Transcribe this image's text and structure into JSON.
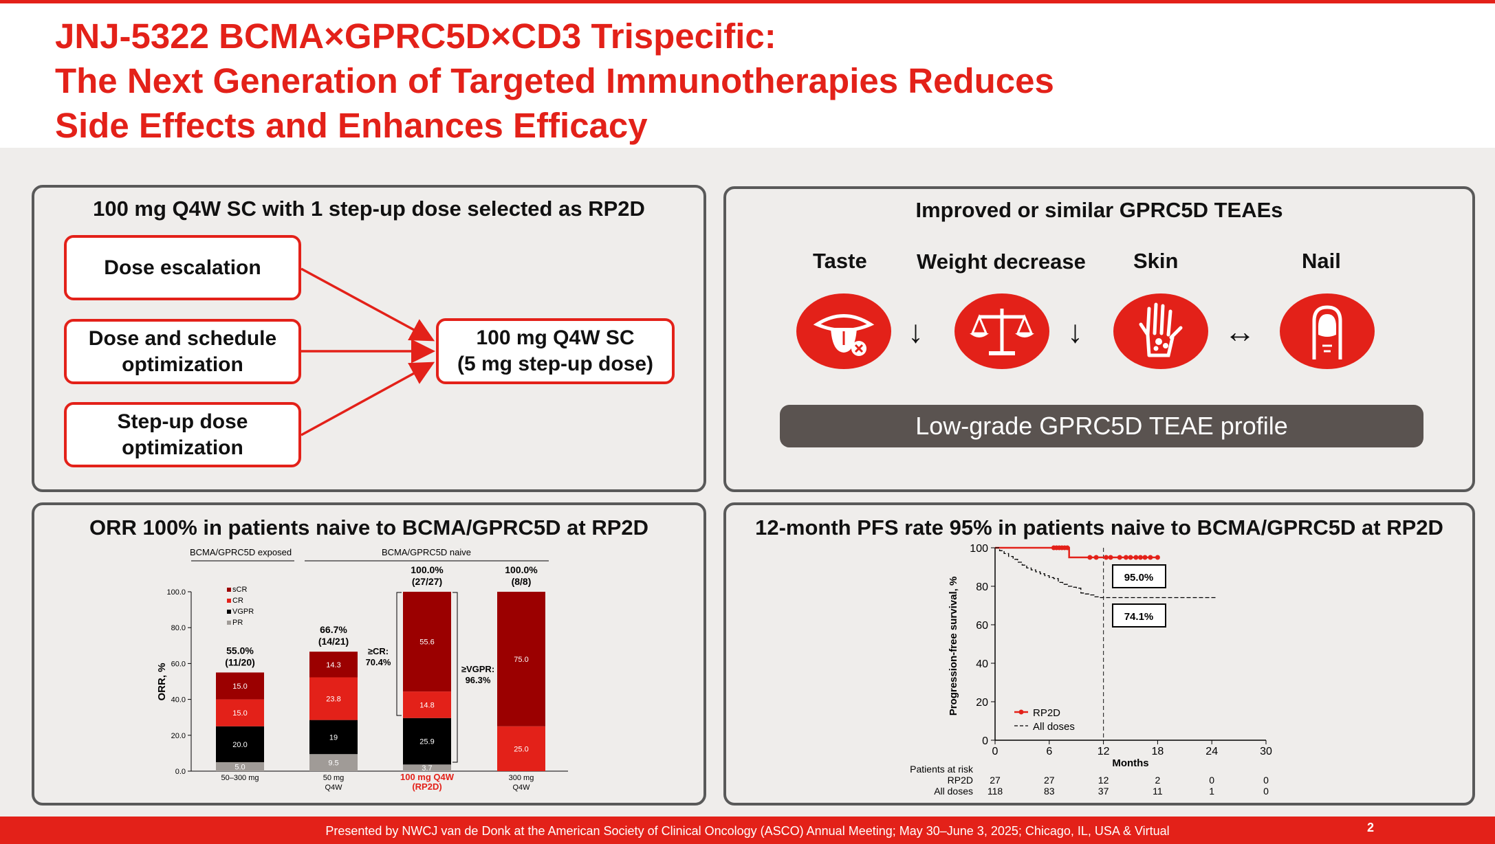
{
  "title": {
    "line1": "JNJ-5322 BCMA×GPRC5D×CD3 Trispecific:",
    "line2": "The Next Generation of Targeted Immunotherapies Reduces",
    "line3": "Side Effects and Enhances Efficacy"
  },
  "panel1": {
    "title": "100 mg Q4W SC with 1 step-up dose selected as RP2D",
    "boxes": [
      "Dose escalation",
      "Dose and schedule\noptimization",
      "Step-up dose\noptimization"
    ],
    "result": "100 mg Q4W SC\n(5 mg step-up dose)"
  },
  "panel2": {
    "title": "Improved or similar GPRC5D TEAEs",
    "items": [
      {
        "label": "Taste",
        "icon": "tongue-icon",
        "trend": "↓"
      },
      {
        "label": "Weight decrease",
        "icon": "scale-icon",
        "trend": "↓"
      },
      {
        "label": "Skin",
        "icon": "hand-icon",
        "trend": "↔"
      },
      {
        "label": "Nail",
        "icon": "nail-icon",
        "trend": ""
      }
    ],
    "profile": "Low-grade GPRC5D TEAE profile"
  },
  "panel3": {
    "title": "ORR 100% in patients naive to BCMA/GPRC5D at RP2D"
  },
  "panel4": {
    "title": "12-month PFS rate 95% in patients naive to BCMA/GPRC5D at RP2D"
  },
  "colors": {
    "accent": "#e32119",
    "dark_red": "#9b0000",
    "black": "#000000",
    "grey": "#a09b97"
  },
  "chart_data": [
    {
      "type": "bar",
      "stacked": true,
      "ylabel": "ORR, %",
      "ylim": [
        0,
        100
      ],
      "yticks": [
        "100.0",
        "80.0",
        "60.0",
        "40.0",
        "20.0",
        "0.0"
      ],
      "group_labels": [
        "BCMA/GPRC5D exposed",
        "BCMA/GPRC5D naive"
      ],
      "legend": [
        "sCR",
        "CR",
        "VGPR",
        "PR"
      ],
      "legend_colors": [
        "#9b0000",
        "#e32119",
        "#000000",
        "#a09b97"
      ],
      "categories": [
        "50–300 mg",
        "50 mg\nQ4W",
        "100 mg Q4W\n(RP2D)",
        "300 mg\nQ4W"
      ],
      "highlight_category": 2,
      "bars": [
        {
          "total_label": "55.0%\n(11/20)",
          "segments": [
            {
              "name": "PR",
              "value": 5.0,
              "label": "5.0"
            },
            {
              "name": "VGPR",
              "value": 20.0,
              "label": "20.0"
            },
            {
              "name": "CR",
              "value": 15.0,
              "label": "15.0"
            },
            {
              "name": "sCR",
              "value": 15.0,
              "label": "15.0"
            }
          ]
        },
        {
          "total_label": "66.7%\n(14/21)",
          "segments": [
            {
              "name": "PR",
              "value": 9.5,
              "label": "9.5"
            },
            {
              "name": "VGPR",
              "value": 19.0,
              "label": "19"
            },
            {
              "name": "CR",
              "value": 23.8,
              "label": "23.8"
            },
            {
              "name": "sCR",
              "value": 14.3,
              "label": "14.3"
            }
          ]
        },
        {
          "total_label": "100.0%\n(27/27)",
          "segments": [
            {
              "name": "PR",
              "value": 3.7,
              "label": "3.7"
            },
            {
              "name": "VGPR",
              "value": 25.9,
              "label": "25.9"
            },
            {
              "name": "CR",
              "value": 14.8,
              "label": "14.8"
            },
            {
              "name": "sCR",
              "value": 55.6,
              "label": "55.6"
            }
          ]
        },
        {
          "total_label": "100.0%\n(8/8)",
          "segments": [
            {
              "name": "CR",
              "value": 25.0,
              "label": "25.0"
            },
            {
              "name": "sCR",
              "value": 75.0,
              "label": "75.0"
            }
          ]
        }
      ],
      "annotations": [
        "≥CR:\n70.4%",
        "≥VGPR:\n96.3%"
      ]
    },
    {
      "type": "line",
      "title": "",
      "xlabel": "Months",
      "ylabel": "Progression-free survival, %",
      "xlim": [
        0,
        30
      ],
      "ylim": [
        0,
        100
      ],
      "xticks": [
        0,
        6,
        12,
        18,
        24,
        30
      ],
      "yticks": [
        0,
        20,
        40,
        60,
        80,
        100
      ],
      "reference_x": 12,
      "series": [
        {
          "name": "RP2D",
          "style": "solid-red",
          "x": [
            0,
            6.5,
            8.2,
            8.2,
            12,
            18
          ],
          "y": [
            100,
            100,
            100,
            95,
            95,
            95
          ],
          "censor_x": [
            6.5,
            6.8,
            7.1,
            7.4,
            7.7,
            8.0,
            10.5,
            11.2,
            12.3,
            12.8,
            13.8,
            14.5,
            15.0,
            15.6,
            16.1,
            16.6,
            17.2,
            18.0
          ]
        },
        {
          "name": "All doses",
          "style": "dashed-black",
          "x": [
            0,
            0.5,
            1,
            1.5,
            2,
            2.5,
            3,
            3.5,
            4,
            4.5,
            5,
            5.5,
            6,
            6.5,
            7,
            7.5,
            8,
            8.5,
            9,
            9.5,
            10,
            10.5,
            11,
            11.5,
            12,
            14,
            16,
            18,
            20,
            22,
            24.5
          ],
          "y": [
            100,
            98.5,
            97,
            95.5,
            94,
            92.5,
            91,
            89.5,
            88.5,
            87.5,
            86.5,
            85.5,
            84.5,
            84,
            82,
            81,
            80,
            79.5,
            79,
            76.5,
            76,
            75.5,
            74.5,
            74.1,
            74.1,
            74.1,
            74.1,
            74.1,
            74.1,
            74.1,
            74.1
          ]
        }
      ],
      "annotations": [
        "95.0%",
        "74.1%"
      ],
      "risk_table": {
        "header": "Patients at risk",
        "rows": [
          {
            "label": "RP2D",
            "values": [
              "27",
              "27",
              "12",
              "2",
              "0",
              "0"
            ]
          },
          {
            "label": "All doses",
            "values": [
              "118",
              "83",
              "37",
              "11",
              "1",
              "0"
            ]
          }
        ]
      }
    }
  ],
  "footer": {
    "text": "Presented by NWCJ van de Donk at the American Society of Clinical Oncology (ASCO) Annual Meeting; May 30–June 3, 2025; Chicago, IL, USA & Virtual",
    "page": "2"
  }
}
